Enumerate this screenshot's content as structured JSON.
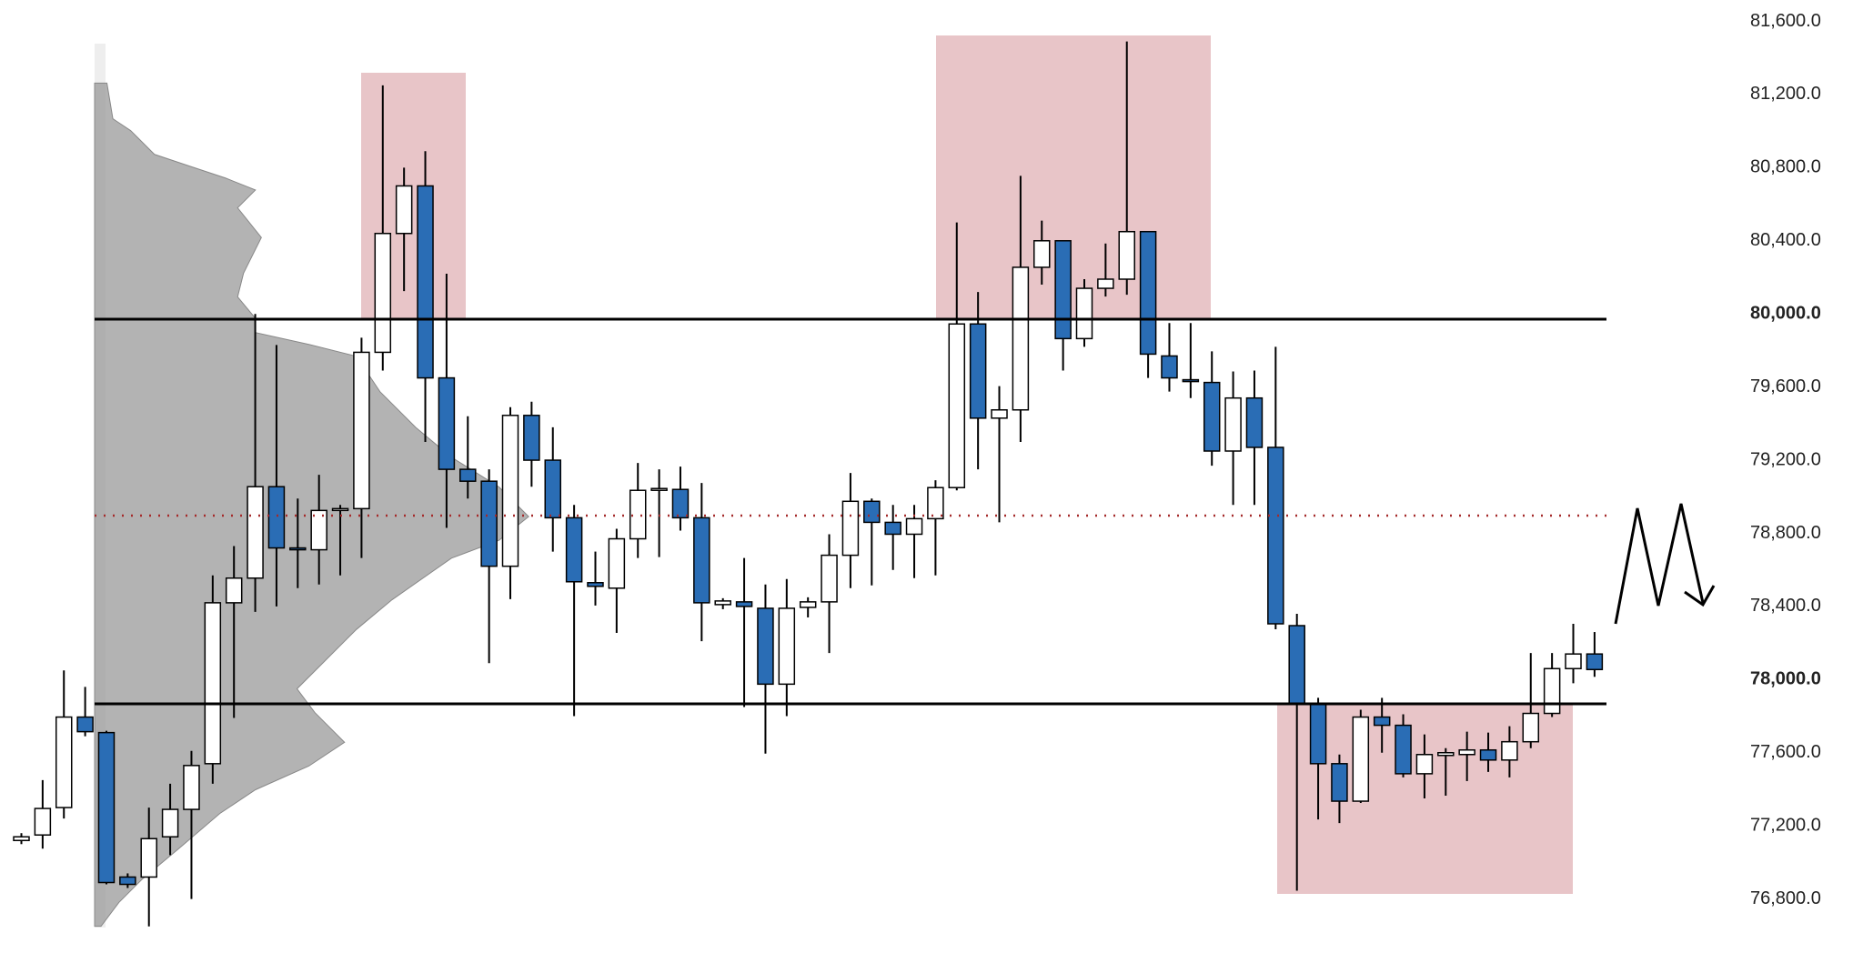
{
  "chart_data": {
    "type": "candlestick",
    "open": [
      77120,
      77150,
      77300,
      77795,
      77710,
      76920,
      76920,
      77140,
      77290,
      77540,
      78420,
      78555,
      79055,
      78720,
      78710,
      78930,
      78935,
      79790,
      80440,
      80700,
      79650,
      79150,
      79085,
      78620,
      79445,
      79200,
      78885,
      78530,
      78500,
      78770,
      79040,
      79040,
      78885,
      78410,
      78425,
      78390,
      77975,
      78395,
      78425,
      78680,
      78975,
      78860,
      78795,
      78880,
      79050,
      79945,
      79430,
      79475,
      80255,
      80400,
      79865,
      80140,
      80190,
      80450,
      79770,
      79640,
      79625,
      79250,
      79540,
      79270,
      78295,
      77865,
      77540,
      77335,
      77795,
      77750,
      77485,
      77585,
      77590,
      77615,
      77560,
      77660,
      77815,
      78060,
      78140
    ],
    "high": [
      77160,
      77450,
      78050,
      77960,
      77720,
      76940,
      77300,
      77430,
      77610,
      78570,
      78730,
      80000,
      79830,
      78990,
      79120,
      78955,
      79870,
      81250,
      80800,
      80890,
      80220,
      79440,
      79150,
      79490,
      79520,
      79380,
      78955,
      78700,
      78825,
      79185,
      79150,
      79165,
      79075,
      78445,
      78665,
      78520,
      78550,
      78450,
      78795,
      79130,
      78990,
      78955,
      78955,
      79090,
      80500,
      80120,
      79605,
      80755,
      80510,
      80400,
      80190,
      80385,
      81490,
      80450,
      79950,
      79950,
      79795,
      79685,
      79690,
      79820,
      78360,
      77900,
      77590,
      77835,
      77900,
      77810,
      77700,
      77625,
      77715,
      77710,
      77745,
      78145,
      78145,
      78305,
      78260
    ],
    "low": [
      77100,
      77075,
      77240,
      77690,
      76880,
      76860,
      76650,
      77040,
      76800,
      77430,
      77790,
      78370,
      78400,
      78500,
      78520,
      78570,
      78665,
      79690,
      80125,
      79300,
      78830,
      78990,
      78090,
      78440,
      79055,
      78700,
      77800,
      78405,
      78255,
      78665,
      78670,
      78815,
      78210,
      78385,
      77850,
      77595,
      77800,
      78340,
      78145,
      78500,
      78515,
      78600,
      78555,
      78570,
      79035,
      79150,
      78860,
      79300,
      80160,
      79690,
      79820,
      80095,
      80105,
      79650,
      79575,
      79540,
      79170,
      78955,
      78955,
      78275,
      76845,
      77235,
      77215,
      77325,
      77600,
      77465,
      77350,
      77365,
      77445,
      77495,
      77465,
      77625,
      77795,
      77980,
      78015
    ],
    "close": [
      77140,
      77295,
      77795,
      77715,
      76890,
      76880,
      77130,
      77290,
      77530,
      78420,
      78555,
      79055,
      78720,
      78710,
      78925,
      78935,
      79790,
      80440,
      80700,
      79650,
      79150,
      79085,
      78620,
      79445,
      79200,
      78885,
      78535,
      78510,
      78770,
      79035,
      79045,
      78885,
      78420,
      78430,
      78400,
      77975,
      78390,
      78425,
      78680,
      78975,
      78860,
      78795,
      78880,
      79050,
      79945,
      79430,
      79475,
      80255,
      80400,
      79865,
      80140,
      80190,
      80450,
      79780,
      79650,
      79635,
      79250,
      79540,
      79270,
      78305,
      77865,
      77540,
      77335,
      77795,
      77750,
      77485,
      77590,
      77600,
      77615,
      77560,
      77660,
      77815,
      78060,
      78140,
      78055
    ],
    "up_color": "#ffffff",
    "down_color": "#2a6db5",
    "ylim": [
      76800,
      81600
    ],
    "yticks": [
      {
        "value": 76800,
        "label": "76,800.0"
      },
      {
        "value": 77200,
        "label": "77,200.0"
      },
      {
        "value": 77600,
        "label": "77,600.0"
      },
      {
        "value": 78000,
        "label": "78,000.0",
        "bold": true
      },
      {
        "value": 78400,
        "label": "78,400.0"
      },
      {
        "value": 78800,
        "label": "78,800.0"
      },
      {
        "value": 79200,
        "label": "79,200.0"
      },
      {
        "value": 79600,
        "label": "79,600.0"
      },
      {
        "value": 80000,
        "label": "80,000.0",
        "bold": true
      },
      {
        "value": 80400,
        "label": "80,400.0"
      },
      {
        "value": 80800,
        "label": "80,800.0"
      },
      {
        "value": 81200,
        "label": "81,200.0"
      },
      {
        "value": 81600,
        "label": "81,600.0"
      }
    ],
    "grid": false
  }
}
